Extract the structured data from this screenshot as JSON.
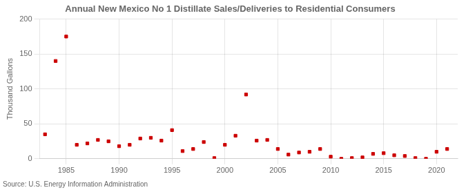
{
  "chart_data": {
    "type": "scatter",
    "title": "Annual New Mexico No 1 Distillate Sales/Deliveries to Residential Consumers",
    "ylabel": "Thousand Gallons",
    "annotations": [
      "Source: U.S. Energy Information Administration"
    ],
    "x": [
      1983,
      1984,
      1985,
      1986,
      1987,
      1988,
      1989,
      1990,
      1991,
      1992,
      1993,
      1994,
      1995,
      1996,
      1997,
      1998,
      1999,
      2000,
      2001,
      2002,
      2003,
      2004,
      2005,
      2006,
      2007,
      2008,
      2009,
      2010,
      2011,
      2012,
      2013,
      2014,
      2015,
      2016,
      2017,
      2018,
      2019,
      2020,
      2021
    ],
    "values": [
      35,
      140,
      175,
      20,
      22,
      27,
      25,
      18,
      20,
      29,
      30,
      26,
      41,
      11,
      14,
      24,
      1,
      20,
      33,
      92,
      26,
      27,
      14,
      6,
      9,
      10,
      14,
      3,
      0,
      1,
      2,
      7,
      8,
      5,
      4,
      1,
      0,
      10,
      14
    ],
    "color": "#cc0000",
    "marker": "square",
    "xlim": [
      1982.5,
      2022
    ],
    "ylim": [
      0,
      200
    ],
    "xticks": [
      1985,
      1990,
      1995,
      2000,
      2005,
      2010,
      2015,
      2020
    ],
    "yticks": [
      0,
      50,
      100,
      150,
      200
    ],
    "grid": true
  }
}
